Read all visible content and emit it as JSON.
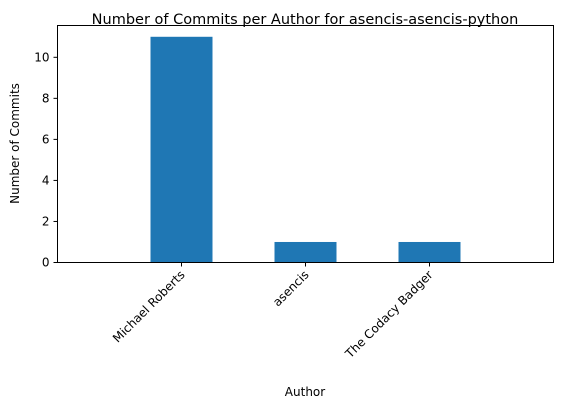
{
  "chart_data": {
    "type": "bar",
    "title": "Number of Commits per Author for asencis-asencis-python",
    "xlabel": "Author",
    "ylabel": "Number of Commits",
    "categories": [
      "Michael Roberts",
      "asencis",
      "The Codacy Badger"
    ],
    "values": [
      11,
      1,
      1
    ],
    "ylim": [
      0,
      11.55
    ],
    "yticks": [
      0,
      2,
      4,
      6,
      8,
      10
    ],
    "bar_color": "#1f77b4",
    "grid": false,
    "legend": "none"
  }
}
